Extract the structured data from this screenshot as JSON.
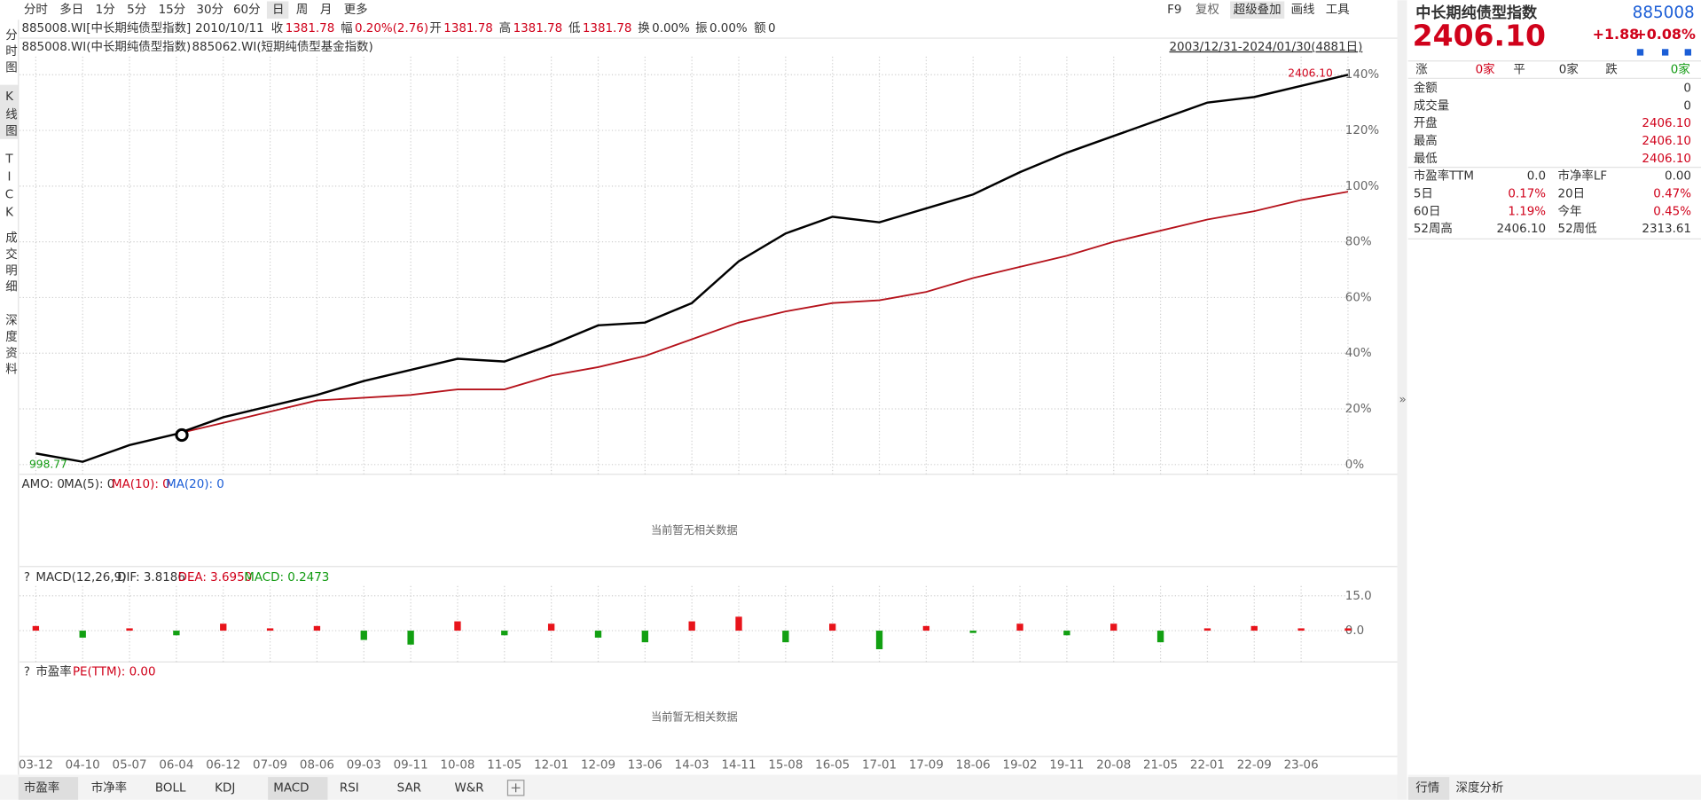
{
  "toolbar": {
    "periods": [
      "分时",
      "多日",
      "1分",
      "5分",
      "15分",
      "30分",
      "60分",
      "日",
      "周",
      "月",
      "更多"
    ],
    "tools": [
      "F9",
      "复权",
      "超级叠加",
      "画线",
      "工具"
    ]
  },
  "info_bar": {
    "code": "885008.WI[中长期纯债型指数]",
    "date": "2010/10/11",
    "fields": [
      {
        "label": "收",
        "value": "1381.78"
      },
      {
        "label": "幅",
        "value": "0.20%(2.76)"
      },
      {
        "label": "开",
        "value": "1381.78"
      },
      {
        "label": "高",
        "value": "1381.78"
      },
      {
        "label": "低",
        "value": "1381.78"
      },
      {
        "label": "换",
        "value": "0.00%"
      },
      {
        "label": "振",
        "value": "0.00%"
      },
      {
        "label": "额",
        "value": "0"
      }
    ]
  },
  "side_tabs": [
    "分时图",
    "K线图",
    "TICK",
    "成交明细",
    "深度资料"
  ],
  "range": "2003/12/31-2024/01/30(4881日)",
  "chart_data": {
    "type": "line",
    "categories": [
      "03-12",
      "04-10",
      "05-07",
      "06-04",
      "06-12",
      "07-09",
      "08-06",
      "09-03",
      "09-11",
      "10-08",
      "11-05",
      "12-01",
      "12-09",
      "13-06",
      "14-03",
      "14-11",
      "15-08",
      "16-05",
      "17-01",
      "17-09",
      "18-06",
      "19-02",
      "19-11",
      "20-08",
      "21-05",
      "22-01",
      "22-09",
      "23-06",
      null
    ],
    "series": [
      {
        "name": "885008.WI(中长期纯债型指数)",
        "color": "#000000",
        "values": [
          4,
          1,
          7,
          11,
          17,
          21,
          25,
          30,
          34,
          38,
          37,
          43,
          50,
          51,
          58,
          73,
          83,
          89,
          87,
          92,
          97,
          105,
          112,
          118,
          124,
          130,
          132,
          136,
          140
        ]
      },
      {
        "name": "885062.WI(短期纯债型基金指数)",
        "color": "#b5121b",
        "values": [
          null,
          null,
          null,
          11,
          15,
          19,
          23,
          24,
          25,
          27,
          27,
          32,
          35,
          39,
          45,
          51,
          55,
          58,
          59,
          62,
          67,
          71,
          75,
          80,
          84,
          88,
          91,
          95,
          98
        ]
      }
    ],
    "ylim": [
      -3.5,
      146.5
    ],
    "yticks": [
      {
        "value": 0,
        "label": "0%"
      },
      {
        "value": 20,
        "label": "20%"
      },
      {
        "value": 40,
        "label": "40%"
      },
      {
        "value": 60,
        "label": "60%"
      },
      {
        "value": 80,
        "label": "80%"
      },
      {
        "value": 100,
        "label": "100%"
      },
      {
        "value": 120,
        "label": "120%"
      },
      {
        "value": 140,
        "label": "140%"
      }
    ],
    "grid": true,
    "annotations": {
      "max": "2406.10",
      "min": "998.77"
    }
  },
  "amo_panel": {
    "fields": [
      "AMO: 0",
      "MA(5): 0",
      "MA(10): 0",
      "MA(20): 0"
    ],
    "empty": "当前暂无相关数据"
  },
  "help_icon": "?",
  "macd_panel": {
    "type": "bar",
    "title": "MACD(12,26,9)",
    "fields": [
      "DIF: 3.8186",
      "DEA: 3.6950",
      "MACD: 0.2473"
    ],
    "values": [
      2,
      -3,
      1,
      -2,
      3,
      1,
      2,
      -4,
      -6,
      4,
      -2,
      3,
      -3,
      -5,
      4,
      6,
      -5,
      3,
      -8,
      2,
      -1,
      3,
      -2,
      3,
      -5,
      1,
      2,
      1,
      1
    ],
    "colors": {
      "up": "#e8141b",
      "down": "#12a012"
    },
    "ylim": [
      -13.5,
      19.2
    ],
    "yticks": [
      {
        "value": 15,
        "label": "15.0"
      },
      {
        "value": 0,
        "label": "0.0"
      }
    ]
  },
  "pe_panel": {
    "title": "市盈率",
    "field": "PE(TTM): 0.00",
    "empty": "当前暂无相关数据"
  },
  "bottom_tabs": [
    "市盈率",
    "市净率",
    "BOLL",
    "KDJ",
    "MACD",
    "RSI",
    "SAR",
    "W&R"
  ],
  "quote": {
    "name": "中长期纯债型指数",
    "code": "885008",
    "price": "2406.10",
    "change": "+1.88",
    "change_pct": "+0.08%",
    "breadth": [
      {
        "label": "涨",
        "value": "0家"
      },
      {
        "label": "平",
        "value": "0家"
      },
      {
        "label": "跌",
        "value": "0家"
      }
    ],
    "rows": [
      {
        "label": "金额",
        "value": "0"
      },
      {
        "label": "成交量",
        "value": "0"
      },
      {
        "label": "开盘",
        "value": "2406.10"
      },
      {
        "label": "最高",
        "value": "2406.10"
      },
      {
        "label": "最低",
        "value": "2406.10"
      }
    ],
    "pairs": [
      [
        {
          "label": "市盈率TTM",
          "value": "0.0"
        },
        {
          "label": "市净率LF",
          "value": "0.00"
        }
      ],
      [
        {
          "label": "5日",
          "value": "0.17%"
        },
        {
          "label": "20日",
          "value": "0.47%"
        }
      ],
      [
        {
          "label": "60日",
          "value": "1.19%"
        },
        {
          "label": "今年",
          "value": "0.45%"
        }
      ],
      [
        {
          "label": "52周高",
          "value": "2406.10"
        },
        {
          "label": "52周低",
          "value": "2313.61"
        }
      ]
    ],
    "tabs": [
      "行情",
      "深度分析"
    ]
  }
}
